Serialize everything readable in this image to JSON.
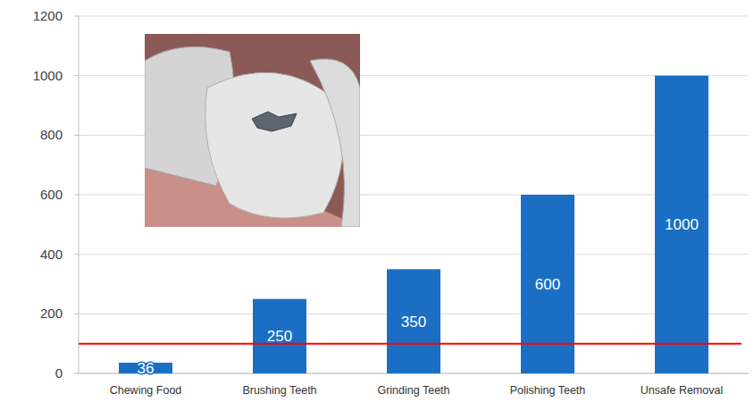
{
  "chart_data": {
    "type": "bar",
    "categories": [
      "Chewing Food",
      "Brushing Teeth",
      "Grinding Teeth",
      "Polishing Teeth",
      "Unsafe Removal"
    ],
    "values": [
      36,
      250,
      350,
      600,
      1000
    ],
    "color": "#1a6fc4",
    "ylim": [
      0,
      1200
    ],
    "yticks": [
      0,
      200,
      400,
      600,
      800,
      1000,
      1200
    ],
    "grid": true,
    "data_labels": true,
    "threshold": 100
  }
}
